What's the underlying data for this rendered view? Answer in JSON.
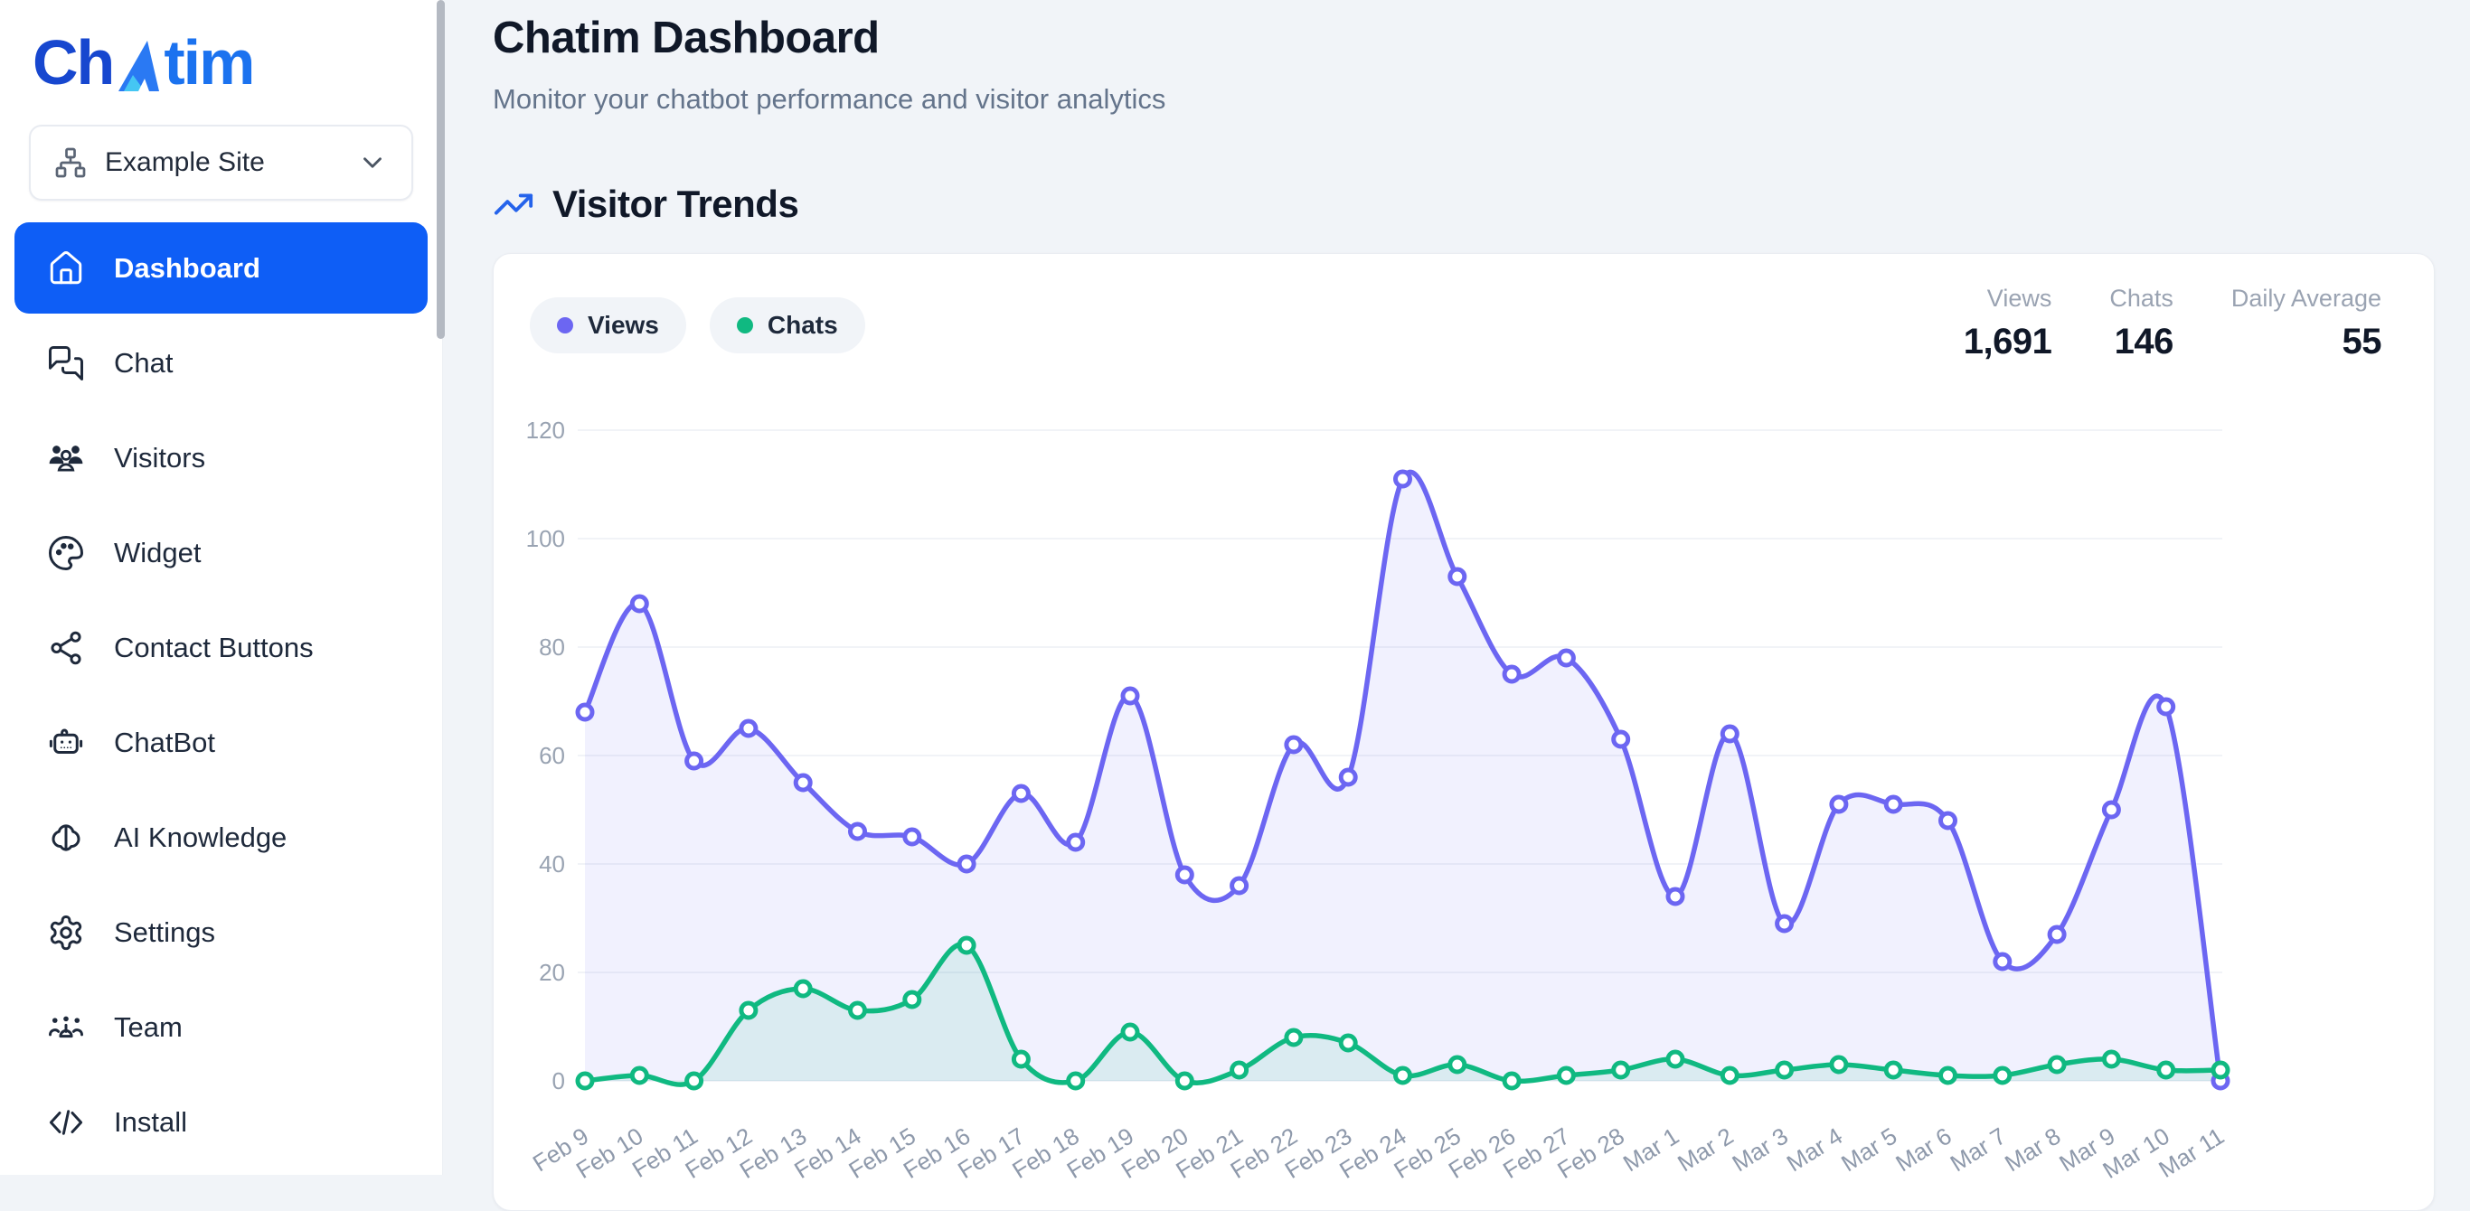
{
  "sidebar": {
    "logo": {
      "prefix": "Ch",
      "suffix": "tim"
    },
    "site_selector": {
      "label": "Example Site"
    },
    "items": [
      {
        "label": "Dashboard",
        "icon": "home",
        "active": true
      },
      {
        "label": "Chat",
        "icon": "chat",
        "active": false
      },
      {
        "label": "Visitors",
        "icon": "users",
        "active": false
      },
      {
        "label": "Widget",
        "icon": "palette",
        "active": false
      },
      {
        "label": "Contact Buttons",
        "icon": "share",
        "active": false
      },
      {
        "label": "ChatBot",
        "icon": "bot",
        "active": false
      },
      {
        "label": "AI Knowledge",
        "icon": "brain",
        "active": false
      },
      {
        "label": "Settings",
        "icon": "gear",
        "active": false
      },
      {
        "label": "Team",
        "icon": "team",
        "active": false
      },
      {
        "label": "Install",
        "icon": "code",
        "active": false
      }
    ]
  },
  "header": {
    "title": "Chatim Dashboard",
    "subtitle": "Monitor your chatbot performance and visitor analytics"
  },
  "section": {
    "title": "Visitor Trends"
  },
  "legend": [
    {
      "label": "Views",
      "color": "#6c66f2"
    },
    {
      "label": "Chats",
      "color": "#10b981"
    }
  ],
  "stats": [
    {
      "label": "Views",
      "value": "1,691"
    },
    {
      "label": "Chats",
      "value": "146"
    },
    {
      "label": "Daily Average",
      "value": "55"
    }
  ],
  "chart_data": {
    "type": "line",
    "title": "Visitor Trends",
    "x": [
      "Feb 9",
      "Feb 10",
      "Feb 11",
      "Feb 12",
      "Feb 13",
      "Feb 14",
      "Feb 15",
      "Feb 16",
      "Feb 17",
      "Feb 18",
      "Feb 19",
      "Feb 20",
      "Feb 21",
      "Feb 22",
      "Feb 23",
      "Feb 24",
      "Feb 25",
      "Feb 26",
      "Feb 27",
      "Feb 28",
      "Mar 1",
      "Mar 2",
      "Mar 3",
      "Mar 4",
      "Mar 5",
      "Mar 6",
      "Mar 7",
      "Mar 8",
      "Mar 9",
      "Mar 10",
      "Mar 11"
    ],
    "series": [
      {
        "name": "Views",
        "color": "#6c66f2",
        "fill": "rgba(104,99,240,0.09)",
        "values": [
          68,
          88,
          59,
          65,
          55,
          46,
          45,
          40,
          53,
          44,
          71,
          38,
          36,
          62,
          56,
          111,
          93,
          75,
          78,
          63,
          34,
          64,
          29,
          51,
          51,
          48,
          22,
          27,
          50,
          69,
          0
        ]
      },
      {
        "name": "Chats",
        "color": "#10b981",
        "fill": "rgba(16,185,129,0.10)",
        "values": [
          0,
          1,
          0,
          13,
          17,
          13,
          15,
          25,
          4,
          0,
          9,
          0,
          2,
          8,
          7,
          1,
          3,
          0,
          1,
          2,
          4,
          1,
          2,
          3,
          2,
          1,
          1,
          3,
          4,
          2,
          2
        ]
      }
    ],
    "ylim": [
      0,
      120
    ],
    "yticks": [
      0,
      20,
      40,
      60,
      80,
      100,
      120
    ],
    "grid": true,
    "legend_position": "top-left",
    "totals": {
      "views": 1691,
      "chats": 146,
      "daily_average": 55
    }
  }
}
